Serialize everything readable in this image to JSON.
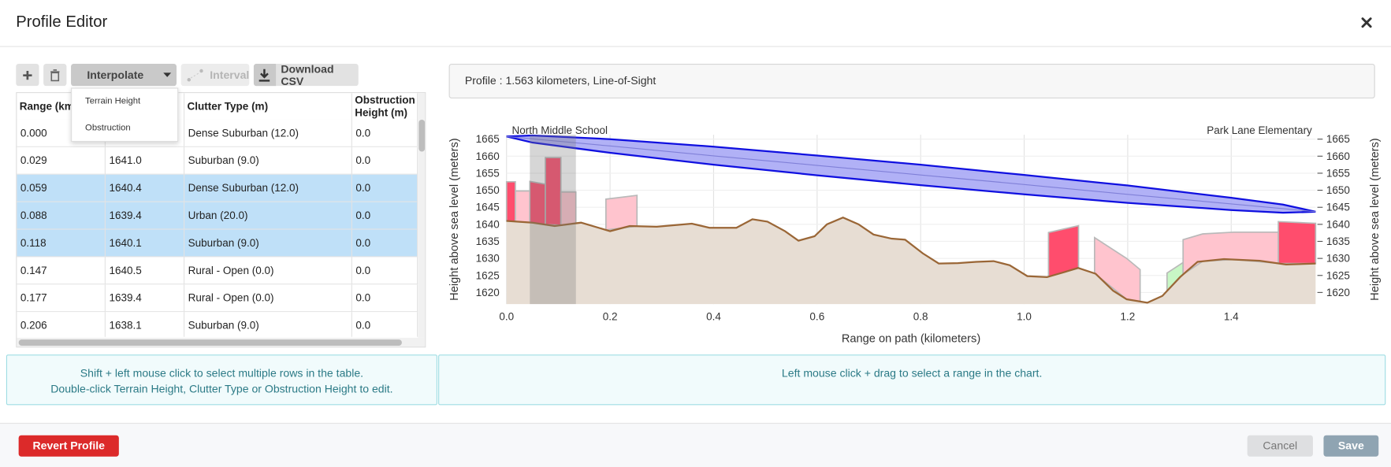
{
  "header": {
    "title": "Profile Editor"
  },
  "toolbar": {
    "interpolate": "Interpolate",
    "interval": "Interval",
    "download": "Download CSV"
  },
  "dropdown": {
    "items": [
      "Terrain Height",
      "Obstruction"
    ]
  },
  "table": {
    "headers": {
      "range": "Range (km",
      "clutter": "Clutter Type (m)",
      "obstruction": "Obstruction Height (m)"
    },
    "selected_rows": [
      2,
      3,
      4
    ],
    "rows": [
      {
        "range": "0.000",
        "clutter": "Dense Suburban (12.0)",
        "obstruction": "0.0"
      },
      {
        "range": "0.029",
        "terrain": "1641.0",
        "clutter": "Suburban (9.0)",
        "obstruction": "0.0"
      },
      {
        "range": "0.059",
        "terrain": "1640.4",
        "clutter": "Dense Suburban (12.0)",
        "obstruction": "0.0"
      },
      {
        "range": "0.088",
        "terrain": "1639.4",
        "clutter": "Urban (20.0)",
        "obstruction": "0.0"
      },
      {
        "range": "0.118",
        "terrain": "1640.1",
        "clutter": "Suburban (9.0)",
        "obstruction": "0.0"
      },
      {
        "range": "0.147",
        "terrain": "1640.5",
        "clutter": "Rural - Open (0.0)",
        "obstruction": "0.0"
      },
      {
        "range": "0.177",
        "terrain": "1639.4",
        "clutter": "Rural - Open (0.0)",
        "obstruction": "0.0"
      },
      {
        "range": "0.206",
        "terrain": "1638.1",
        "clutter": "Suburban (9.0)",
        "obstruction": "0.0"
      }
    ]
  },
  "info": {
    "text": "Profile : 1.563 kilometers, Line-of-Sight"
  },
  "help": {
    "table_lines": [
      "Shift + left mouse click to select multiple rows in the table.",
      "Double-click Terrain Height, Clutter Type or Obstruction Height to edit."
    ],
    "chart": "Left mouse click + drag to select a range in the chart."
  },
  "footer": {
    "revert": "Revert Profile",
    "cancel": "Cancel",
    "save": "Save"
  },
  "chart_data": {
    "type": "area",
    "xlabel": "Range on path (kilometers)",
    "ylabel": "Height above sea level (meters)",
    "y2label": "Height above sea level (meters)",
    "start_label": "North Middle School",
    "end_label": "Park Lane Elementary",
    "xlim": [
      0,
      1.563
    ],
    "ylim": [
      1616.6,
      1666.3
    ],
    "xticks": [
      {
        "value": 0,
        "label": "0.0"
      },
      0.2,
      0.4,
      0.6,
      0.8,
      {
        "value": 1,
        "label": "1.0"
      },
      1.2,
      1.4
    ],
    "yticks": [
      1620,
      1625,
      1630,
      1635,
      1640,
      1645,
      1650,
      1655,
      1660,
      1665
    ],
    "grid": true,
    "color": "#9a6636",
    "fill": "#e7ddd3",
    "x": [
      0,
      0.05,
      0.093,
      0.144,
      0.2,
      0.238,
      0.29,
      0.358,
      0.392,
      0.444,
      0.475,
      0.504,
      0.538,
      0.564,
      0.595,
      0.619,
      0.65,
      0.68,
      0.709,
      0.744,
      0.77,
      0.804,
      0.835,
      0.872,
      0.907,
      0.941,
      0.972,
      1.006,
      1.044,
      1.078,
      1.104,
      1.138,
      1.172,
      1.198,
      1.238,
      1.267,
      1.301,
      1.335,
      1.386,
      1.455,
      1.506,
      1.563
    ],
    "values": [
      1641,
      1640.5,
      1639.5,
      1640.5,
      1638,
      1639.5,
      1639.3,
      1640.2,
      1639,
      1639,
      1641.5,
      1640.8,
      1638,
      1635.2,
      1636.5,
      1640,
      1642,
      1640,
      1637,
      1635.8,
      1635.5,
      1631.5,
      1628.5,
      1628.6,
      1629,
      1629.2,
      1628,
      1624.8,
      1624.5,
      1626,
      1627.2,
      1625.5,
      1620.5,
      1618,
      1617,
      1619,
      1624.5,
      1629,
      1629.8,
      1629.3,
      1628.2,
      1628.5
    ],
    "los": {
      "color": "#1010e0",
      "fill": "#a9a9f5",
      "x": [
        0,
        0.05,
        0.2,
        0.4,
        0.6,
        0.8,
        1.0,
        1.2,
        1.4,
        1.5,
        1.563
      ],
      "upper": [
        1665.8,
        1666.1,
        1665.0,
        1662.8,
        1660.2,
        1657.5,
        1654.5,
        1651.4,
        1647.8,
        1645.8,
        1643.7
      ],
      "center": [
        1665.8,
        1665.1,
        1663.0,
        1660.1,
        1657.3,
        1654.5,
        1651.7,
        1648.8,
        1646.0,
        1644.6,
        1643.7
      ],
      "lower": [
        1665.8,
        1664.0,
        1661.0,
        1657.5,
        1654.4,
        1651.5,
        1648.8,
        1646.3,
        1644.2,
        1643.4,
        1643.7
      ]
    },
    "clutter": [
      {
        "color": "#ff4d6d",
        "x": [
          0,
          0.017
        ],
        "top": [
          1652.5,
          1652.5
        ]
      },
      {
        "color": "#ffc4ce",
        "x": [
          0.017,
          0.045
        ],
        "top": [
          1649.8,
          1649.8
        ]
      },
      {
        "color": "#ff4d6d",
        "x": [
          0.045,
          0.075
        ],
        "top": [
          1652.6,
          1651.8
        ]
      },
      {
        "color": "#ff4d6d",
        "x": [
          0.075,
          0.105
        ],
        "top": [
          1659.6,
          1659.6
        ]
      },
      {
        "color": "#ffc4ce",
        "x": [
          0.105,
          0.134
        ],
        "top": [
          1649.5,
          1649.5
        ]
      },
      {
        "color": "#ffc4ce",
        "x": [
          0.192,
          0.252
        ],
        "top": [
          1647.4,
          1648.5
        ]
      },
      {
        "color": "#ff4d6d",
        "x": [
          1.047,
          1.105
        ],
        "top": [
          1637.6,
          1639.6
        ]
      },
      {
        "color": "#ffc4ce",
        "x": [
          1.136,
          1.198,
          1.224
        ],
        "top": [
          1636.1,
          1630,
          1626.7
        ]
      },
      {
        "color": "#c8f7c5",
        "x": [
          1.276,
          1.307
        ],
        "top": [
          1625.7,
          1628.8
        ]
      },
      {
        "color": "#ffc4ce",
        "x": [
          1.307,
          1.345,
          1.405,
          1.491
        ],
        "top": [
          1635.5,
          1637.2,
          1637.7,
          1637.7
        ]
      },
      {
        "color": "#ff4d6d",
        "x": [
          1.491,
          1.563
        ],
        "top": [
          1640.8,
          1640.3
        ]
      }
    ],
    "selection": [
      0.045,
      0.134
    ]
  }
}
